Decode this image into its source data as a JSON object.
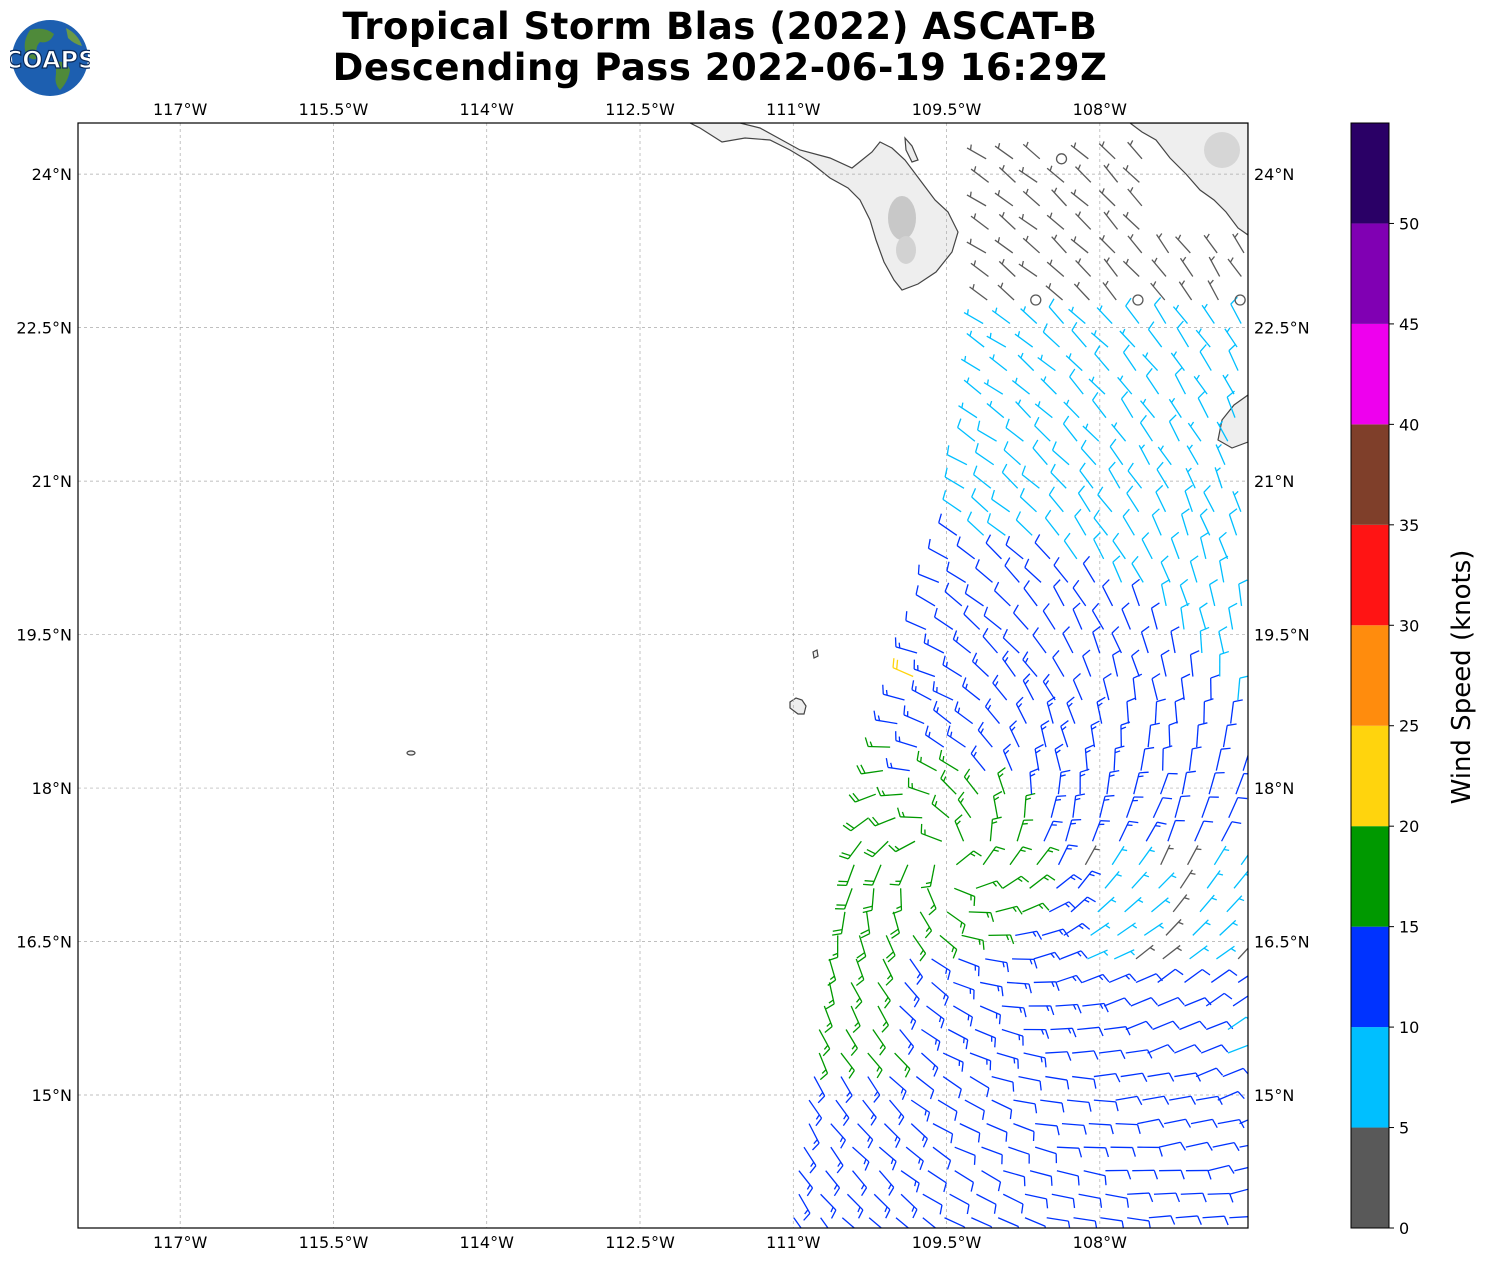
{
  "title": {
    "line1": "Tropical Storm Blas (2022) ASCAT-B",
    "line2": "Descending Pass 2022-06-19 16:29Z"
  },
  "logo": {
    "text": "COAPS",
    "icon": "globe-icon",
    "ocean_color": "#1d5fb0",
    "land_color": "#4f8a3a"
  },
  "map": {
    "lon_range": [
      -118.0,
      -106.55
    ],
    "lat_range": [
      13.7,
      24.5
    ],
    "lon_ticks": [
      "117°W",
      "115.5°W",
      "114°W",
      "112.5°W",
      "111°W",
      "109.5°W",
      "108°W"
    ],
    "lat_ticks": [
      "24°N",
      "22.5°N",
      "21°N",
      "19.5°N",
      "18°N",
      "16.5°N",
      "15°N"
    ],
    "grid": true,
    "land_color": "#eeeeee",
    "coast_color": "#444444"
  },
  "colorbar": {
    "label": "Wind Speed (knots)",
    "ticks": [
      "0",
      "5",
      "10",
      "15",
      "20",
      "25",
      "30",
      "35",
      "40",
      "45",
      "50"
    ],
    "bins": [
      {
        "range": "0-5",
        "color": "#595959"
      },
      {
        "range": "5-10",
        "color": "#00bfff"
      },
      {
        "range": "10-15",
        "color": "#0033ff"
      },
      {
        "range": "15-20",
        "color": "#009900"
      },
      {
        "range": "20-25",
        "color": "#ffd40d"
      },
      {
        "range": "25-30",
        "color": "#ff8c0d"
      },
      {
        "range": "30-35",
        "color": "#ff1414"
      },
      {
        "range": "35-40",
        "color": "#7f3f2a"
      },
      {
        "range": "40-45",
        "color": "#ee00ee"
      },
      {
        "range": "45-50",
        "color": "#8000b3"
      },
      {
        "range": "50+",
        "color": "#2a0066"
      }
    ]
  },
  "wind_barbs": {
    "description_units": "knots",
    "swath_west_edge": [
      [
        -111.0,
        13.8
      ],
      [
        -110.6,
        16.5
      ],
      [
        -109.9,
        18.9
      ],
      [
        -109.4,
        20.5
      ],
      [
        -109.2,
        21.6
      ],
      [
        -109.1,
        22.9
      ]
    ]
  }
}
